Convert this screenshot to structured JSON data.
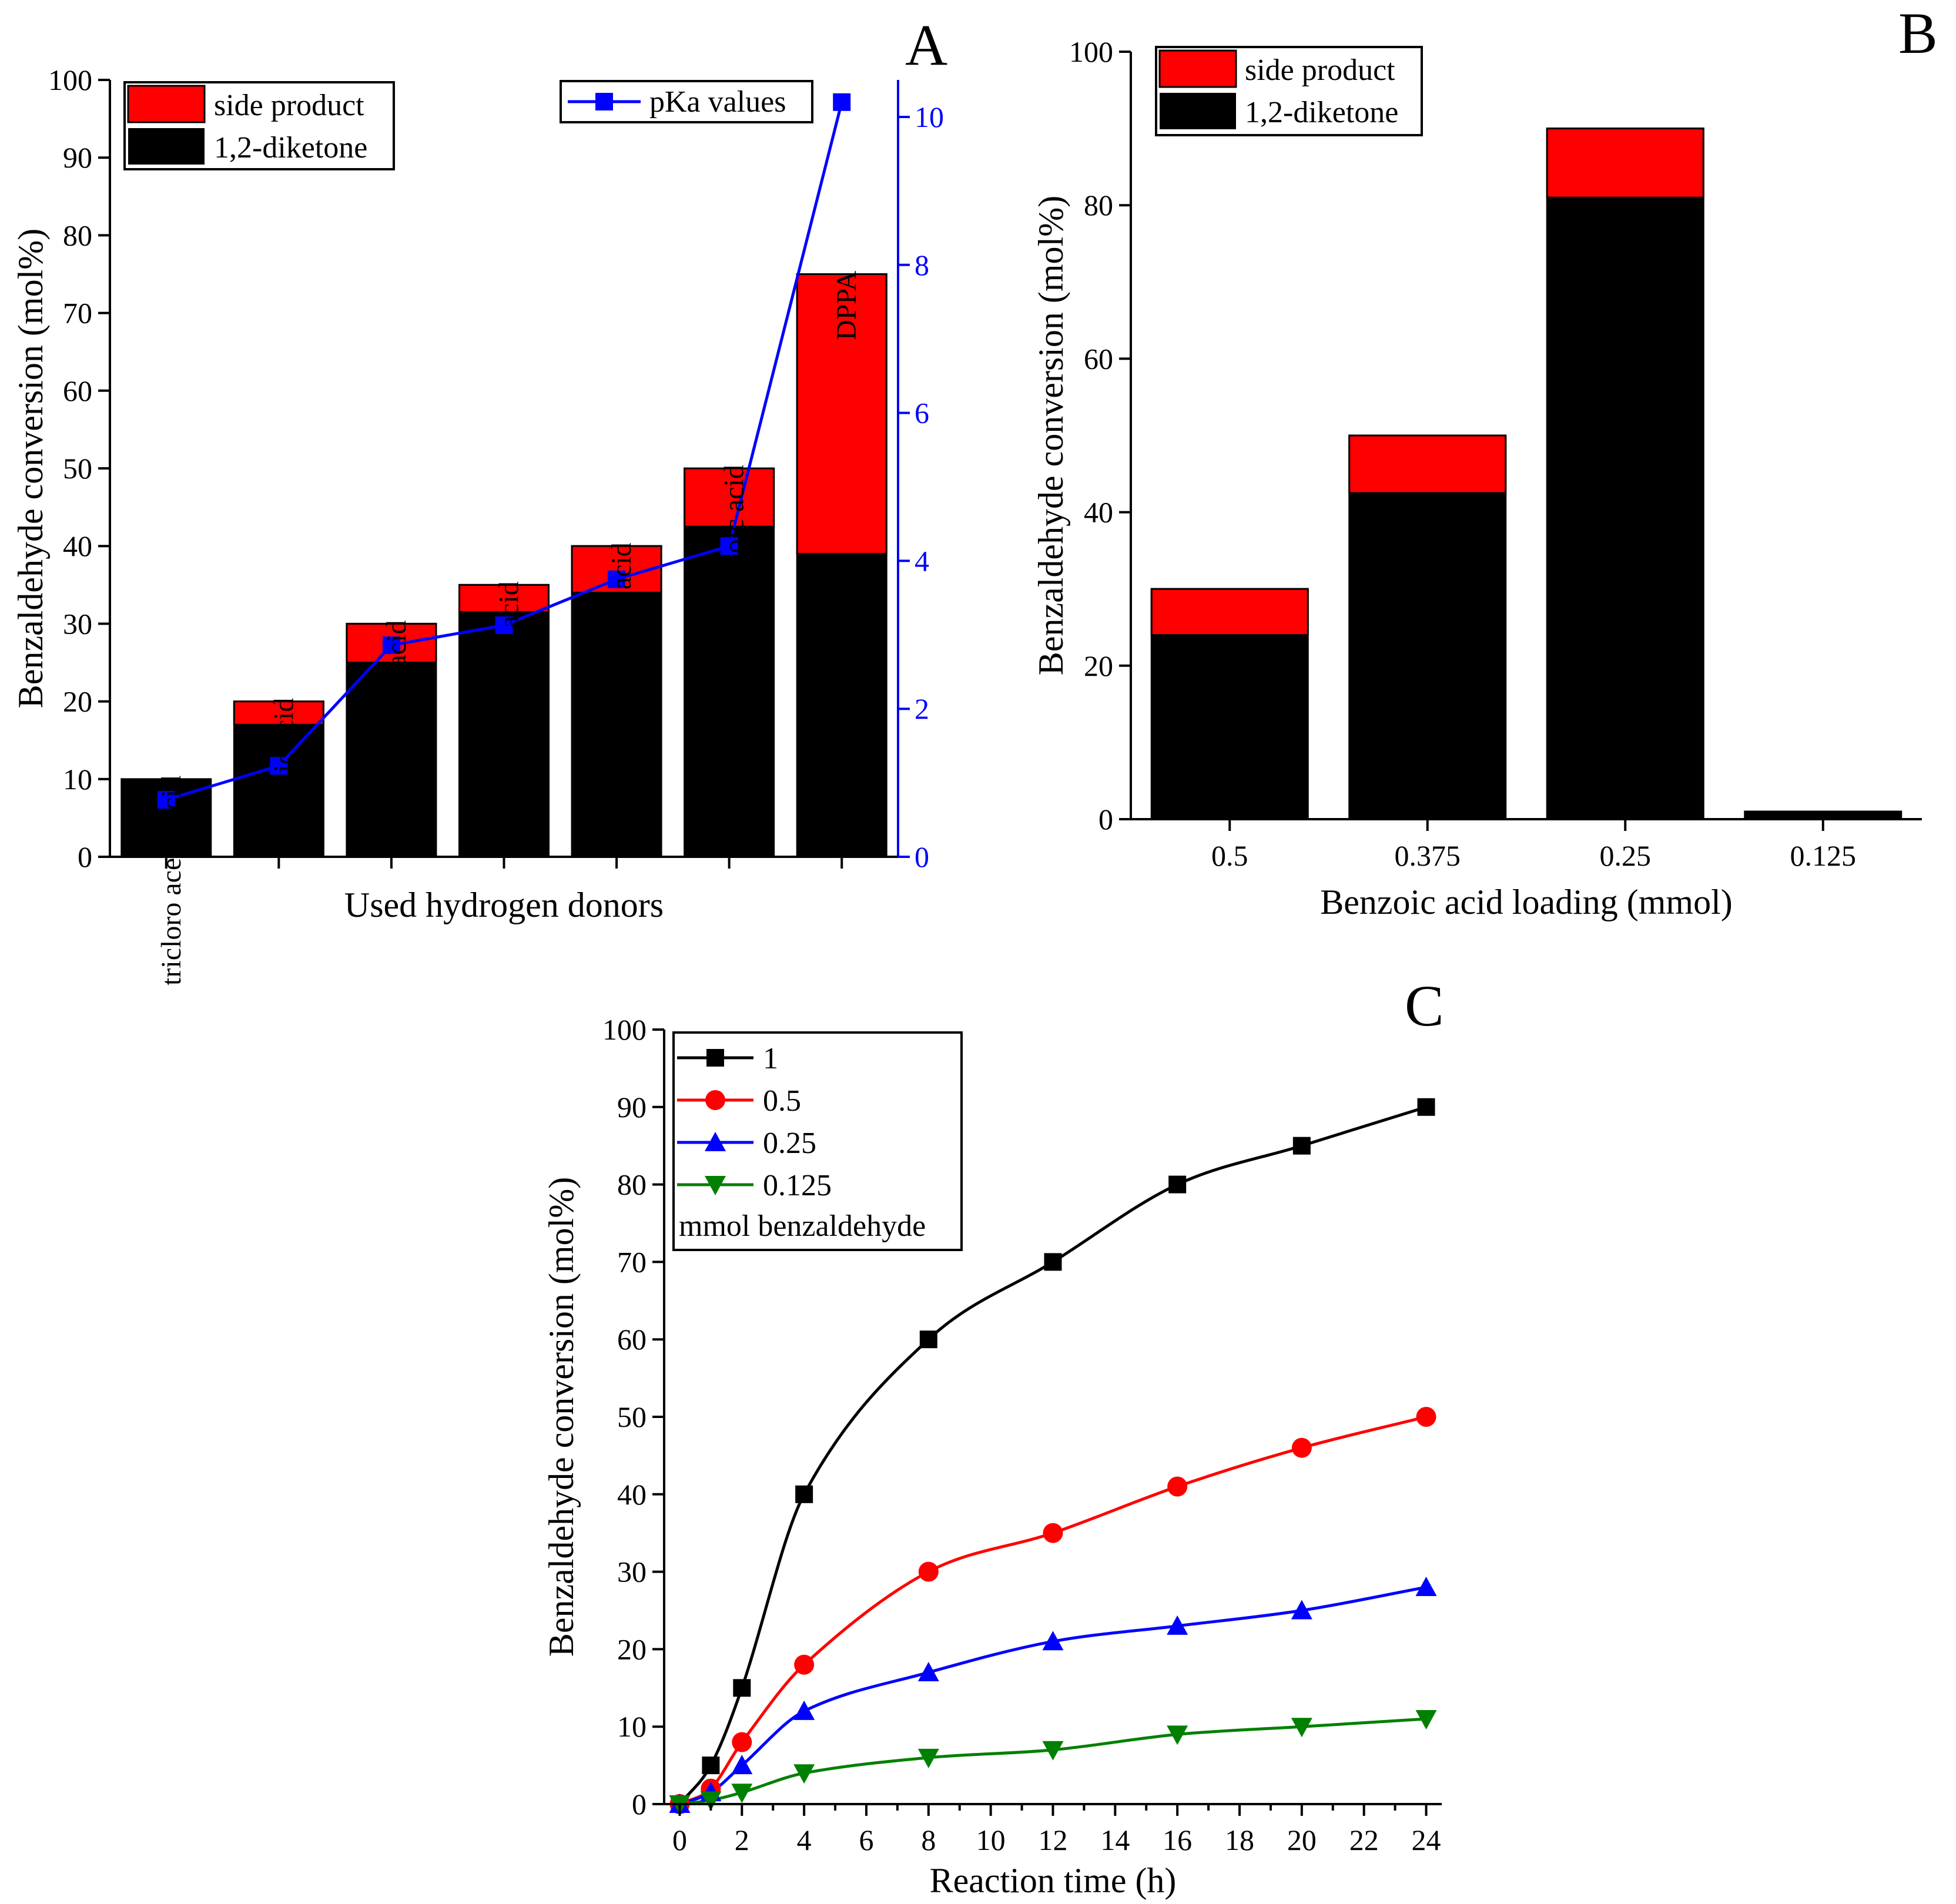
{
  "chart_data": [
    {
      "panel": "A",
      "type": "bar",
      "stacked": true,
      "xlabel": "Used hydrogen donors",
      "ylabel": "Benzaldehyde conversion (mol%)",
      "ylim": [
        0,
        100
      ],
      "yticks": [
        0,
        10,
        20,
        30,
        40,
        50,
        60,
        70,
        80,
        90,
        100
      ],
      "categories": [
        "tricloro acetic acid",
        "oxalic acid",
        "cloroacetic acid",
        "citric acid",
        "formic acid",
        "benzoic acid",
        "DPPA"
      ],
      "series": [
        {
          "name": "1,2-diketone",
          "color": "#000000",
          "values": [
            10,
            17,
            25,
            31.5,
            34,
            42.5,
            39
          ]
        },
        {
          "name": "side product",
          "color": "#ff0000",
          "values": [
            0,
            3,
            5,
            3.5,
            6,
            7.5,
            36
          ]
        }
      ],
      "legend": {
        "position": "top-left",
        "entries": [
          "side product",
          "1,2-diketone"
        ]
      },
      "secondary_axis": {
        "ylim": [
          0,
          10.5
        ],
        "yticks": [
          0,
          2,
          4,
          6,
          8,
          10
        ],
        "color": "#0000ff",
        "series": {
          "name": "pKa values",
          "values": [
            0.77,
            1.23,
            2.86,
            3.13,
            3.75,
            4.2,
            10.2
          ]
        },
        "legend": {
          "position": "top-right",
          "entries": [
            "pKa values"
          ]
        }
      }
    },
    {
      "panel": "B",
      "type": "bar",
      "stacked": true,
      "xlabel": "Benzoic acid loading (mmol)",
      "ylabel": "Benzaldehyde conversion (mol%)",
      "ylim": [
        0,
        100
      ],
      "yticks": [
        0,
        20,
        40,
        60,
        80,
        100
      ],
      "categories": [
        "0.5",
        "0.375",
        "0.25",
        "0.125"
      ],
      "series": [
        {
          "name": "1,2-diketone",
          "color": "#000000",
          "values": [
            24,
            42.5,
            81,
            1
          ]
        },
        {
          "name": "side product",
          "color": "#ff0000",
          "values": [
            6,
            7.5,
            9,
            0
          ]
        }
      ],
      "legend": {
        "position": "top-left",
        "entries": [
          "side product",
          "1,2-diketone"
        ]
      }
    },
    {
      "panel": "C",
      "type": "line",
      "xlabel": "Reaction time (h)",
      "ylabel": "Benzaldehyde conversion (mol%)",
      "xlim": [
        -0.5,
        24.5
      ],
      "ylim": [
        0,
        100
      ],
      "xticks": [
        0,
        2,
        4,
        6,
        8,
        10,
        12,
        14,
        16,
        18,
        20,
        22,
        24
      ],
      "yticks": [
        0,
        10,
        20,
        30,
        40,
        50,
        60,
        70,
        80,
        90,
        100
      ],
      "x": [
        0,
        1,
        2,
        4,
        8,
        12,
        16,
        20,
        24
      ],
      "series": [
        {
          "name": "1",
          "color": "#000000",
          "marker": "square",
          "values": [
            0,
            5,
            15,
            40,
            60,
            70,
            80,
            85,
            90
          ]
        },
        {
          "name": "0.5",
          "color": "#ff0000",
          "marker": "circle",
          "values": [
            0,
            2,
            8,
            18,
            30,
            35,
            41,
            46,
            50
          ]
        },
        {
          "name": "0.25",
          "color": "#0000ff",
          "marker": "triangle-up",
          "values": [
            0,
            1.5,
            5,
            12,
            17,
            21,
            23,
            25,
            28
          ]
        },
        {
          "name": "0.125",
          "color": "#008000",
          "marker": "triangle-down",
          "values": [
            0,
            0.5,
            1.5,
            4,
            6,
            7,
            9,
            10,
            11
          ]
        }
      ],
      "legend": {
        "position": "top-left",
        "entries": [
          "1",
          "0.5",
          "0.25",
          "0.125"
        ],
        "note": "mmol benzaldehyde"
      }
    }
  ]
}
